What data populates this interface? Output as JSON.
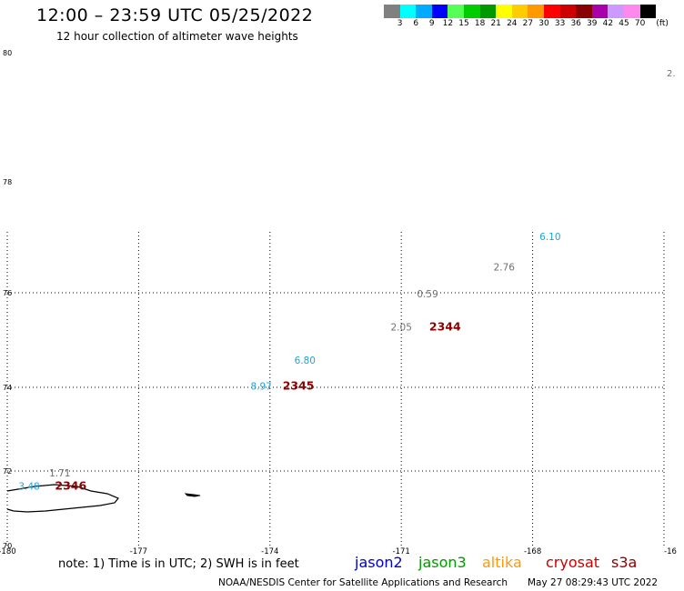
{
  "header": {
    "title": "12:00 – 23:59 UTC 05/25/2022",
    "subtitle": "12 hour collection of altimeter wave heights"
  },
  "legend": {
    "unit": "(ft)",
    "bins": [
      {
        "label": "3",
        "color": "#808080"
      },
      {
        "label": "6",
        "color": "#00ffff"
      },
      {
        "label": "9",
        "color": "#00aaff"
      },
      {
        "label": "12",
        "color": "#0000ff"
      },
      {
        "label": "15",
        "color": "#55ff55"
      },
      {
        "label": "18",
        "color": "#00cc00"
      },
      {
        "label": "21",
        "color": "#009900"
      },
      {
        "label": "24",
        "color": "#ffff00"
      },
      {
        "label": "27",
        "color": "#ffcc00"
      },
      {
        "label": "30",
        "color": "#ff9900"
      },
      {
        "label": "33",
        "color": "#ff0000"
      },
      {
        "label": "36",
        "color": "#cc0000"
      },
      {
        "label": "39",
        "color": "#880000"
      },
      {
        "label": "42",
        "color": "#aa00aa"
      },
      {
        "label": "45",
        "color": "#cc99ff"
      },
      {
        "label": "70",
        "color": "#ff88ee"
      },
      {
        "label": "",
        "color": "#000000"
      }
    ]
  },
  "map": {
    "lat_ticks": [
      "80",
      "78",
      "76",
      "74",
      "72",
      "70"
    ],
    "lon_ticks": [
      "-180",
      "-177",
      "-174",
      "-171",
      "-168",
      "-16"
    ],
    "edge_label": "2.",
    "labels": [
      {
        "text": "6.10",
        "lon": -167.6,
        "lat": 76.95,
        "color": "#1aa6d8"
      },
      {
        "text": "2.76",
        "lon": -168.65,
        "lat": 76.4,
        "color": "#707070"
      },
      {
        "text": "0.59",
        "lon": -170.4,
        "lat": 75.9,
        "color": "#707070"
      },
      {
        "text": "2.05",
        "lon": -171.0,
        "lat": 75.2,
        "color": "#707070"
      },
      {
        "text": "2344",
        "lon": -170.0,
        "lat": 75.2,
        "color": "#8b0000",
        "bold": true
      },
      {
        "text": "6.80",
        "lon": -173.2,
        "lat": 74.5,
        "color": "#1aa6d8"
      },
      {
        "text": "8.97",
        "lon": -174.2,
        "lat": 73.95,
        "color": "#1aa6d8"
      },
      {
        "text": "2345",
        "lon": -173.35,
        "lat": 73.95,
        "color": "#8b0000",
        "bold": true
      },
      {
        "text": "1.71",
        "lon": -178.8,
        "lat": 71.85,
        "color": "#707070"
      },
      {
        "text": "3.48",
        "lon": -179.5,
        "lat": 71.5,
        "color": "#1aa6d8"
      },
      {
        "text": "2346",
        "lon": -178.55,
        "lat": 71.5,
        "color": "#8b0000",
        "bold": true
      }
    ]
  },
  "satellites": [
    {
      "name": "jason2",
      "color": "#0000cc"
    },
    {
      "name": "jason3",
      "color": "#009900"
    },
    {
      "name": "altika",
      "color": "#ff9900"
    },
    {
      "name": "cryosat",
      "color": "#cc0000"
    },
    {
      "name": "s3a",
      "color": "#8b0000"
    }
  ],
  "footer": {
    "note": "note:  1) Time is in UTC;  2) SWH is in feet",
    "credit": "NOAA/NESDIS Center for Satellite Applications and Research",
    "timestamp": "May 27 08:29:43 UTC 2022"
  }
}
